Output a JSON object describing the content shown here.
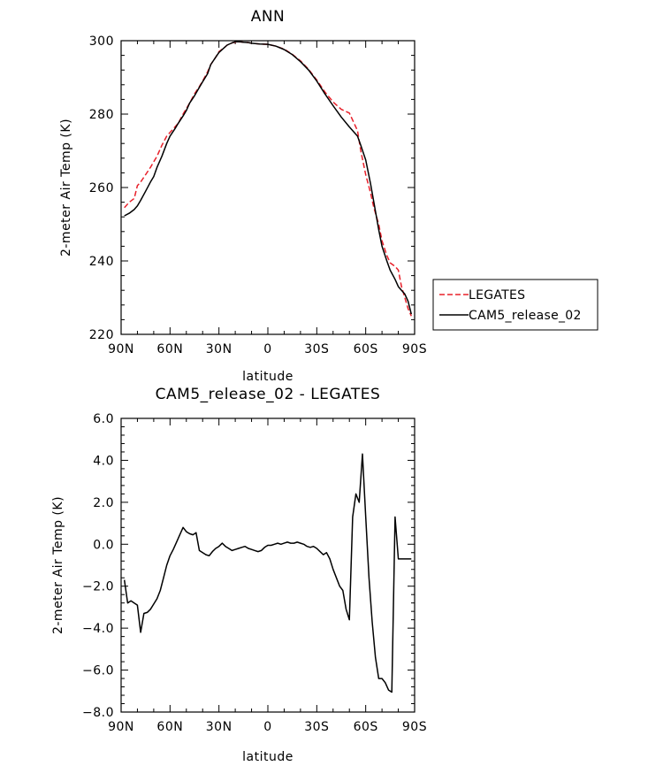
{
  "chart_data": [
    {
      "type": "line",
      "title": "ANN",
      "xlabel": "latitude",
      "ylabel": "2-meter Air Temp (K)",
      "xlim": [
        90,
        -90
      ],
      "ylim": [
        220,
        300
      ],
      "x_ticks": [
        90,
        60,
        30,
        0,
        -30,
        -60,
        -90
      ],
      "x_tick_labels": [
        "90N",
        "60N",
        "30N",
        "0",
        "30S",
        "60S",
        "90S"
      ],
      "y_ticks": [
        220,
        240,
        260,
        280,
        300
      ],
      "y_tick_labels": [
        "220",
        "240",
        "260",
        "280",
        "300"
      ],
      "legend": {
        "placement": "right",
        "entries": [
          "LEGATES",
          "CAM5_release_02"
        ]
      },
      "series": [
        {
          "name": "LEGATES",
          "color": "#e8202a",
          "dash": "dashed",
          "x": [
            88,
            85,
            82,
            80,
            78,
            75,
            72,
            70,
            68,
            65,
            62,
            60,
            57,
            55,
            52,
            50,
            48,
            45,
            42,
            40,
            37,
            35,
            32,
            30,
            27,
            25,
            22,
            20,
            17,
            15,
            12,
            10,
            5,
            0,
            -5,
            -10,
            -15,
            -20,
            -25,
            -30,
            -35,
            -40,
            -45,
            -50,
            -55,
            -57,
            -60,
            -63,
            -65,
            -68,
            -70,
            -73,
            -75,
            -78,
            -80,
            -82,
            -84,
            -86,
            -88
          ],
          "y": [
            254.5,
            256,
            257,
            260.5,
            261.5,
            263.5,
            265.5,
            267,
            268.5,
            271.5,
            274,
            275,
            276.5,
            277.5,
            280,
            281.5,
            283,
            285.5,
            287.5,
            289,
            291.5,
            293.5,
            295.5,
            297,
            298,
            298.8,
            299.4,
            299.6,
            299.7,
            299.6,
            299.5,
            299.3,
            299.1,
            299,
            298.5,
            297.7,
            296.3,
            294.5,
            292.2,
            289.3,
            286,
            283.3,
            281.3,
            280.3,
            275.5,
            270,
            263.5,
            258.5,
            254.5,
            250,
            245.5,
            241.5,
            239.5,
            238.5,
            237.5,
            233,
            230,
            227,
            225
          ]
        },
        {
          "name": "CAM5_release_02",
          "color": "#000000",
          "dash": "solid",
          "x": [
            88,
            85,
            82,
            80,
            78,
            75,
            72,
            70,
            68,
            65,
            62,
            60,
            57,
            55,
            52,
            50,
            48,
            45,
            42,
            40,
            37,
            35,
            32,
            30,
            27,
            25,
            22,
            20,
            17,
            15,
            12,
            10,
            5,
            0,
            -5,
            -10,
            -15,
            -20,
            -25,
            -30,
            -35,
            -40,
            -45,
            -50,
            -55,
            -57,
            -60,
            -63,
            -65,
            -68,
            -70,
            -73,
            -75,
            -78,
            -80,
            -82,
            -84,
            -86,
            -88
          ],
          "y": [
            252.3,
            253,
            254,
            255,
            256.5,
            259,
            261.5,
            263,
            265.5,
            268.5,
            272,
            274,
            276,
            277.5,
            279.5,
            281,
            283,
            285,
            287.3,
            288.8,
            291,
            293.5,
            295.5,
            296.8,
            298,
            298.8,
            299.4,
            299.7,
            299.7,
            299.6,
            299.5,
            299.3,
            299.1,
            299,
            298.5,
            297.6,
            296.2,
            294.3,
            292,
            289,
            285.5,
            282.3,
            279.2,
            276.5,
            274,
            271.5,
            267.5,
            261,
            256,
            248.5,
            244,
            240,
            237.5,
            235,
            233,
            232,
            231,
            229,
            225.5
          ]
        }
      ]
    },
    {
      "type": "line",
      "title": "CAM5_release_02 - LEGATES",
      "xlabel": "latitude",
      "ylabel": "2-meter Air Temp (K)",
      "xlim": [
        90,
        -90
      ],
      "ylim": [
        -8,
        6
      ],
      "x_ticks": [
        90,
        60,
        30,
        0,
        -30,
        -60,
        -90
      ],
      "x_tick_labels": [
        "90N",
        "60N",
        "30N",
        "0",
        "30S",
        "60S",
        "90S"
      ],
      "y_ticks": [
        -8,
        -6,
        -4,
        -2,
        0,
        2,
        4,
        6
      ],
      "y_tick_labels": [
        "-8.0",
        "-6.0",
        "-4.0",
        "-2.0",
        "0.0",
        "2.0",
        "4.0",
        "6.0"
      ],
      "series": [
        {
          "color": "#000000",
          "dash": "solid",
          "x": [
            88,
            86,
            84,
            82,
            80,
            78,
            76,
            74,
            72,
            70,
            68,
            66,
            64,
            62,
            60,
            58,
            56,
            54,
            52,
            50,
            48,
            46,
            44,
            42,
            40,
            38,
            36,
            34,
            32,
            30,
            28,
            26,
            24,
            22,
            20,
            18,
            16,
            14,
            12,
            10,
            8,
            6,
            4,
            2,
            0,
            -2,
            -4,
            -6,
            -8,
            -10,
            -12,
            -14,
            -16,
            -18,
            -20,
            -22,
            -24,
            -26,
            -28,
            -30,
            -32,
            -34,
            -36,
            -38,
            -40,
            -42,
            -44,
            -46,
            -48,
            -50,
            -52,
            -54,
            -56,
            -58,
            -60,
            -62,
            -64,
            -66,
            -68,
            -70,
            -72,
            -74,
            -76,
            -78,
            -80,
            -82,
            -84,
            -86,
            -88
          ],
          "y": [
            -1.7,
            -2.8,
            -2.7,
            -2.8,
            -2.9,
            -4.2,
            -3.3,
            -3.25,
            -3.1,
            -2.85,
            -2.6,
            -2.2,
            -1.6,
            -1.0,
            -0.55,
            -0.25,
            0.1,
            0.45,
            0.8,
            0.6,
            0.5,
            0.45,
            0.55,
            -0.3,
            -0.4,
            -0.5,
            -0.55,
            -0.35,
            -0.2,
            -0.1,
            0.05,
            -0.1,
            -0.2,
            -0.3,
            -0.25,
            -0.2,
            -0.15,
            -0.1,
            -0.2,
            -0.25,
            -0.3,
            -0.35,
            -0.3,
            -0.15,
            -0.05,
            -0.05,
            0.0,
            0.05,
            0.0,
            0.05,
            0.1,
            0.05,
            0.05,
            0.1,
            0.05,
            0.0,
            -0.1,
            -0.15,
            -0.1,
            -0.2,
            -0.35,
            -0.5,
            -0.4,
            -0.7,
            -1.2,
            -1.6,
            -2.0,
            -2.2,
            -3.1,
            -3.6,
            1.3,
            2.4,
            2.0,
            4.3,
            1.3,
            -1.6,
            -3.7,
            -5.4,
            -6.4,
            -6.4,
            -6.6,
            -6.95,
            -7.05,
            1.3,
            -0.7,
            -0.7,
            -0.7,
            -0.7,
            -0.7
          ]
        }
      ]
    }
  ]
}
